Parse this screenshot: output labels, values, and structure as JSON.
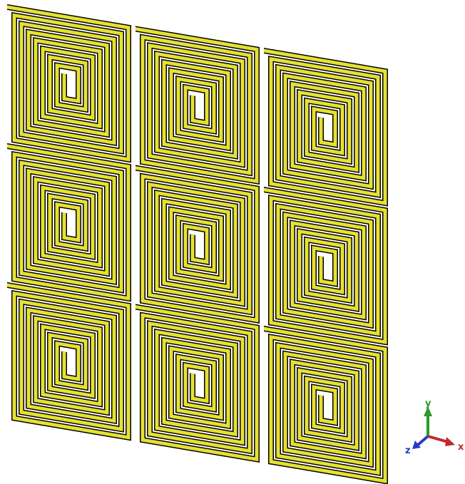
{
  "axes": {
    "y": "y",
    "x": "x",
    "z": "z"
  }
}
